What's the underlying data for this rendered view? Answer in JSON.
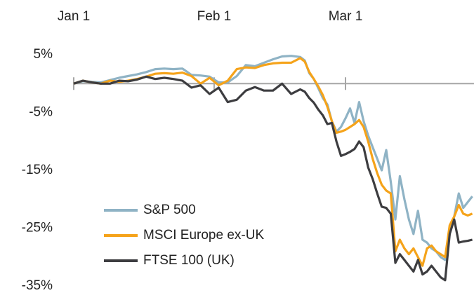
{
  "chart_data": {
    "type": "line",
    "x": [
      0,
      2,
      4,
      6,
      8,
      10,
      12,
      14,
      16,
      18,
      20,
      22,
      24,
      26,
      28,
      30,
      32,
      34,
      36,
      38,
      40,
      42,
      44,
      46,
      48,
      50,
      51,
      52,
      53,
      54,
      55,
      56,
      57,
      58,
      59,
      60,
      61,
      62,
      63,
      64,
      65,
      66,
      67,
      68,
      69,
      70,
      71,
      72,
      73,
      74,
      75,
      76,
      77,
      78,
      79,
      80,
      81,
      82,
      83,
      84,
      85,
      86,
      87,
      88
    ],
    "xlim": [
      0,
      88
    ],
    "xticks": [
      {
        "value": 0,
        "label": "Jan 1"
      },
      {
        "value": 31,
        "label": "Feb 1"
      },
      {
        "value": 60,
        "label": "Mar 1"
      }
    ],
    "ylim": [
      -35,
      5
    ],
    "yticks": [
      {
        "value": 5,
        "label": "5%"
      },
      {
        "value": -5,
        "label": "-5%"
      },
      {
        "value": -15,
        "label": "-15%"
      },
      {
        "value": -25,
        "label": "-25%"
      },
      {
        "value": -35,
        "label": "-35%"
      }
    ],
    "grid": false,
    "legend": "lower left",
    "series": [
      {
        "name": "S&P 500",
        "color": "#8fb3c5",
        "values": [
          0,
          0.4,
          0.3,
          0.2,
          0.6,
          1.0,
          1.3,
          1.6,
          2.0,
          2.5,
          2.6,
          2.5,
          2.6,
          1.5,
          1.4,
          1.2,
          0.2,
          0.2,
          1.3,
          3.2,
          3.0,
          3.6,
          4.2,
          4.7,
          4.8,
          4.6,
          4.0,
          1.8,
          0.8,
          -0.8,
          -2.5,
          -3.6,
          -6.5,
          -8.3,
          -7.5,
          -6,
          -4.3,
          -6.8,
          -3.2,
          -6.5,
          -9,
          -11,
          -13,
          -15,
          -11.5,
          -17,
          -23.5,
          -16,
          -20,
          -23.5,
          -26,
          -22,
          -27,
          -27.5,
          -28.5,
          -29,
          -30,
          -30.5,
          -26,
          -23,
          -19,
          -21.5,
          -20.5,
          -19.5
        ]
      },
      {
        "name": "MSCI Europe ex-UK",
        "color": "#f5a31a",
        "values": [
          0,
          0.5,
          0.2,
          0,
          0.5,
          0.3,
          0.5,
          0.8,
          1.2,
          1.7,
          1.8,
          1.7,
          1.9,
          1.3,
          0,
          1,
          -0.3,
          0.5,
          2.5,
          2.8,
          2.7,
          3.2,
          3.5,
          3.6,
          3.6,
          4.4,
          3.8,
          2.0,
          0.8,
          -0.5,
          -2.0,
          -4,
          -6.5,
          -8.5,
          -8.3,
          -8,
          -7.5,
          -7,
          -6.3,
          -7.5,
          -10,
          -13,
          -15.5,
          -17.5,
          -18.5,
          -19,
          -29,
          -27,
          -28.5,
          -29.5,
          -28.5,
          -30,
          -31.5,
          -28.5,
          -28,
          -29,
          -29.5,
          -30,
          -24.5,
          -23,
          -21,
          -22.5,
          -22.8,
          -22.5
        ]
      },
      {
        "name": "FTSE 100 (UK)",
        "color": "#3d3d40",
        "values": [
          0,
          0.5,
          0.2,
          0,
          0,
          0.5,
          0.4,
          0.7,
          1.2,
          0.8,
          1.0,
          0.8,
          0.5,
          -0.7,
          -0.3,
          -1.8,
          -0.7,
          -3.2,
          -2.8,
          -1.2,
          -0.6,
          -1.2,
          -1.2,
          0,
          -1.8,
          -1,
          -1.4,
          -2.5,
          -3.3,
          -4.5,
          -5.5,
          -7,
          -6.8,
          -10,
          -12.5,
          -12.2,
          -11.8,
          -11.3,
          -10,
          -11,
          -14.5,
          -16.5,
          -19,
          -21.3,
          -21.5,
          -22.5,
          -31,
          -29.5,
          -30.5,
          -31.5,
          -32.5,
          -30.5,
          -33,
          -32.5,
          -31.5,
          -32.5,
          -33.5,
          -34,
          -26,
          -23.5,
          -27.5,
          -27.3,
          -27.2,
          -27
        ]
      }
    ]
  }
}
